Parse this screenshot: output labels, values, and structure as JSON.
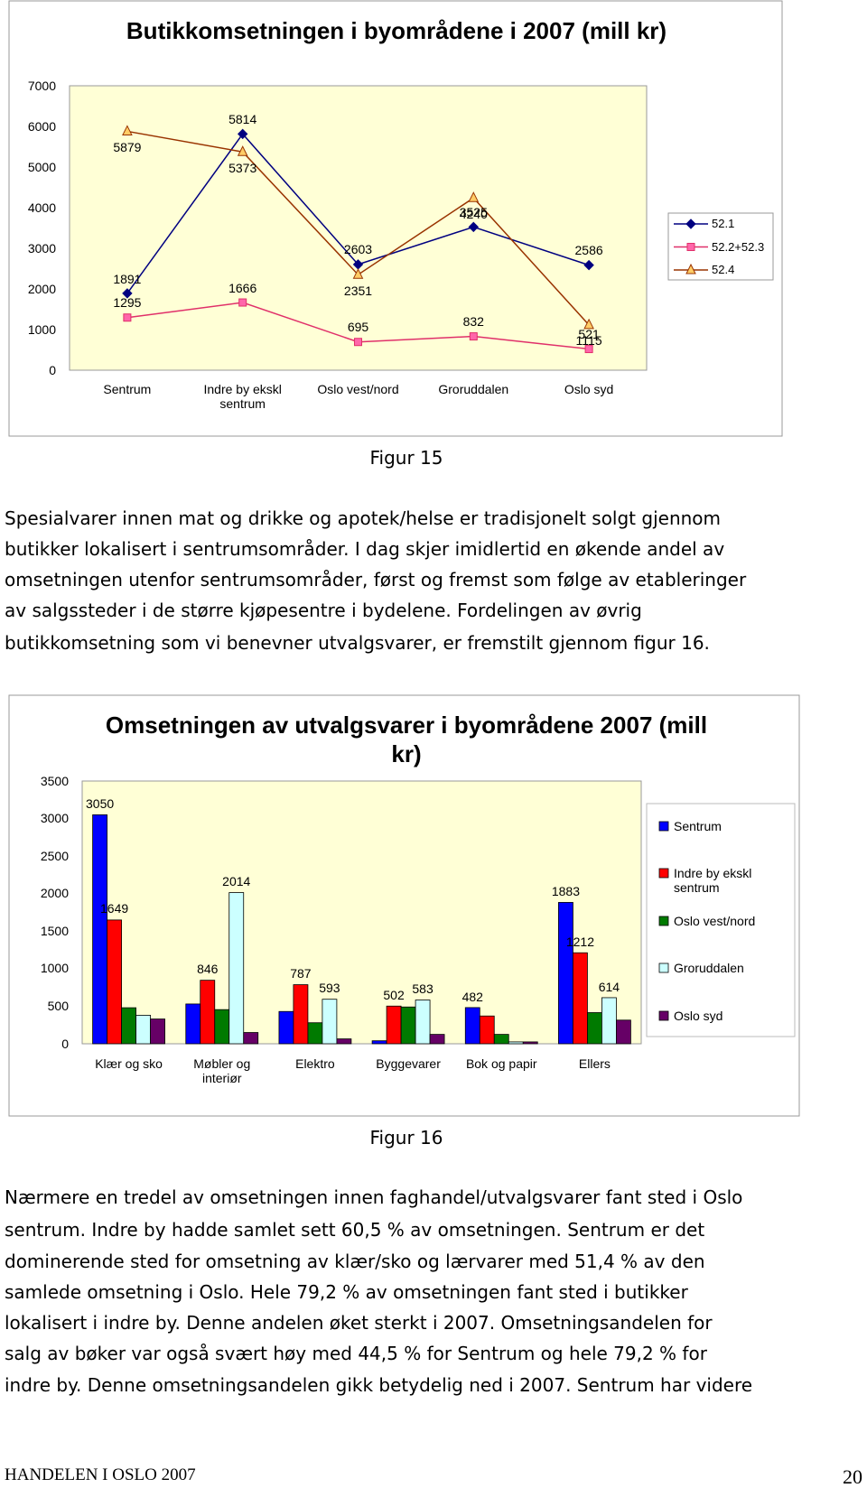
{
  "chart_data": [
    {
      "type": "line",
      "title": "Butikkomsetningen i byområdene i 2007 (mill kr)",
      "categories": [
        "Sentrum",
        "Indre by ekskl sentrum",
        "Oslo vest/nord",
        "Groruddalen",
        "Oslo syd"
      ],
      "series": [
        {
          "name": "52.1",
          "color": "#000080",
          "marker": "diamond",
          "marker_color": "#000080",
          "values": [
            1891,
            5814,
            2603,
            3525,
            2586
          ]
        },
        {
          "name": "52.2+52.3",
          "color": "#e0306a",
          "marker": "square",
          "marker_color": "#ff66aa",
          "values": [
            1295,
            1666,
            695,
            832,
            521
          ]
        },
        {
          "name": "52.4",
          "color": "#993300",
          "marker": "triangle",
          "marker_color": "#ffcc66",
          "values": [
            5879,
            5373,
            2351,
            4240,
            1115
          ]
        }
      ],
      "ylim": [
        0,
        7000
      ],
      "yticks": [
        0,
        1000,
        2000,
        3000,
        4000,
        5000,
        6000,
        7000
      ],
      "grid": false,
      "legend": "right"
    },
    {
      "type": "bar",
      "title": "Omsetningen av utvalgsvarer i byområdene 2007 (mill kr)",
      "categories": [
        "Klær og sko",
        "Møbler og interiør",
        "Elektro",
        "Byggevarer",
        "Bok og papir",
        "Ellers"
      ],
      "series": [
        {
          "name": "Sentrum",
          "color": "#0000ff",
          "values": [
            3050,
            530,
            430,
            40,
            482,
            1883
          ],
          "value_labels": [
            "3050",
            null,
            null,
            null,
            "482",
            "1883"
          ]
        },
        {
          "name": "Indre by ekskl sentrum",
          "color": "#ff0000",
          "values": [
            1649,
            846,
            787,
            502,
            370,
            1212
          ],
          "value_labels": [
            "1649",
            "846",
            "787",
            "502",
            null,
            "1212"
          ]
        },
        {
          "name": "Oslo vest/nord",
          "color": "#007a00",
          "values": [
            480,
            455,
            280,
            490,
            125,
            415
          ],
          "value_labels": [
            null,
            null,
            null,
            null,
            null,
            null
          ]
        },
        {
          "name": "Groruddalen",
          "color": "#ccffff",
          "values": [
            380,
            2014,
            593,
            583,
            25,
            614
          ],
          "value_labels": [
            null,
            "2014",
            "593",
            "583",
            null,
            "614"
          ]
        },
        {
          "name": "Oslo syd",
          "color": "#660066",
          "values": [
            330,
            150,
            65,
            125,
            25,
            315
          ],
          "value_labels": [
            null,
            null,
            null,
            null,
            null,
            null
          ]
        }
      ],
      "ylim": [
        0,
        3500
      ],
      "yticks": [
        0,
        500,
        1000,
        1500,
        2000,
        2500,
        3000,
        3500
      ],
      "grid": false,
      "legend": "right"
    }
  ],
  "captions": [
    "Figur 15",
    "Figur 16"
  ],
  "paragraphs": [
    [
      "Spesialvarer innen mat og drikke og apotek/helse er tradisjonelt solgt gjennom",
      "butikker lokalisert i sentrumsområder. I dag skjer imidlertid en økende andel av",
      "omsetningen utenfor sentrumsområder, først og fremst som følge av etableringer",
      "av salgssteder i de større kjøpesentre i bydelene. Fordelingen av øvrig",
      "butikkomsetning som vi benevner utvalgsvarer, er fremstilt gjennom figur 16."
    ],
    [
      "Nærmere en tredel av omsetningen innen faghandel/utvalgsvarer fant sted i Oslo",
      "sentrum. Indre by hadde samlet sett 60,5 % av omsetningen. Sentrum er det",
      "dominerende sted for omsetning av klær/sko og lærvarer med 51,4 % av den",
      "samlede omsetning i Oslo. Hele 79,2 % av omsetningen fant sted i butikker",
      "lokalisert i indre by. Denne andelen øket sterkt i 2007. Omsetningsandelen for",
      "salg av bøker var også svært høy med 44,5 % for Sentrum og hele 79,2 % for",
      "indre by. Denne omsetningsandelen gikk betydelig ned i 2007. Sentrum har videre"
    ]
  ],
  "footer": {
    "title": "HANDELEN I OSLO 2007",
    "page": "20"
  }
}
